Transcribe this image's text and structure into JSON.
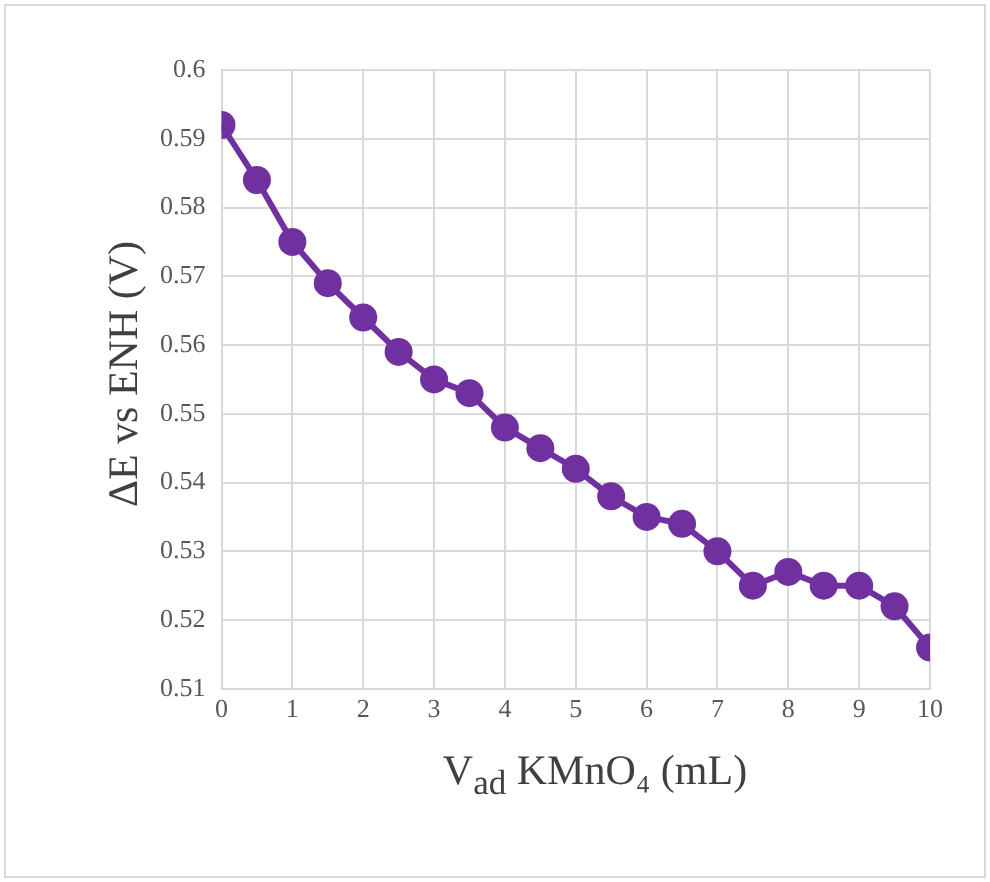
{
  "chart_data": {
    "type": "line",
    "xlabel": "V$_{ad}$ KMnO₄ (mL)",
    "ylabel": "ΔE vs ENH (V)",
    "x": [
      0,
      0.5,
      1,
      1.5,
      2,
      2.5,
      3,
      3.5,
      4,
      4.5,
      5,
      5.5,
      6,
      6.5,
      7,
      7.5,
      8,
      8.5,
      9,
      9.5,
      10
    ],
    "series": [
      {
        "color": "#7030a0",
        "values": [
          0.592,
          0.584,
          0.575,
          0.569,
          0.564,
          0.559,
          0.555,
          0.553,
          0.548,
          0.545,
          0.542,
          0.538,
          0.535,
          0.534,
          0.53,
          0.525,
          0.527,
          0.525,
          0.525,
          0.522,
          0.516
        ]
      }
    ],
    "xlim": [
      0,
      10
    ],
    "xticks": [
      0,
      1,
      2,
      3,
      4,
      5,
      6,
      7,
      8,
      9,
      10
    ],
    "ylim": [
      0.51,
      0.6
    ],
    "yticks": [
      0.51,
      0.52,
      0.53,
      0.54,
      0.55,
      0.56,
      0.57,
      0.58,
      0.59,
      0.6
    ],
    "grid": true,
    "marker": "circle",
    "line_style": "solid",
    "legend": false
  }
}
